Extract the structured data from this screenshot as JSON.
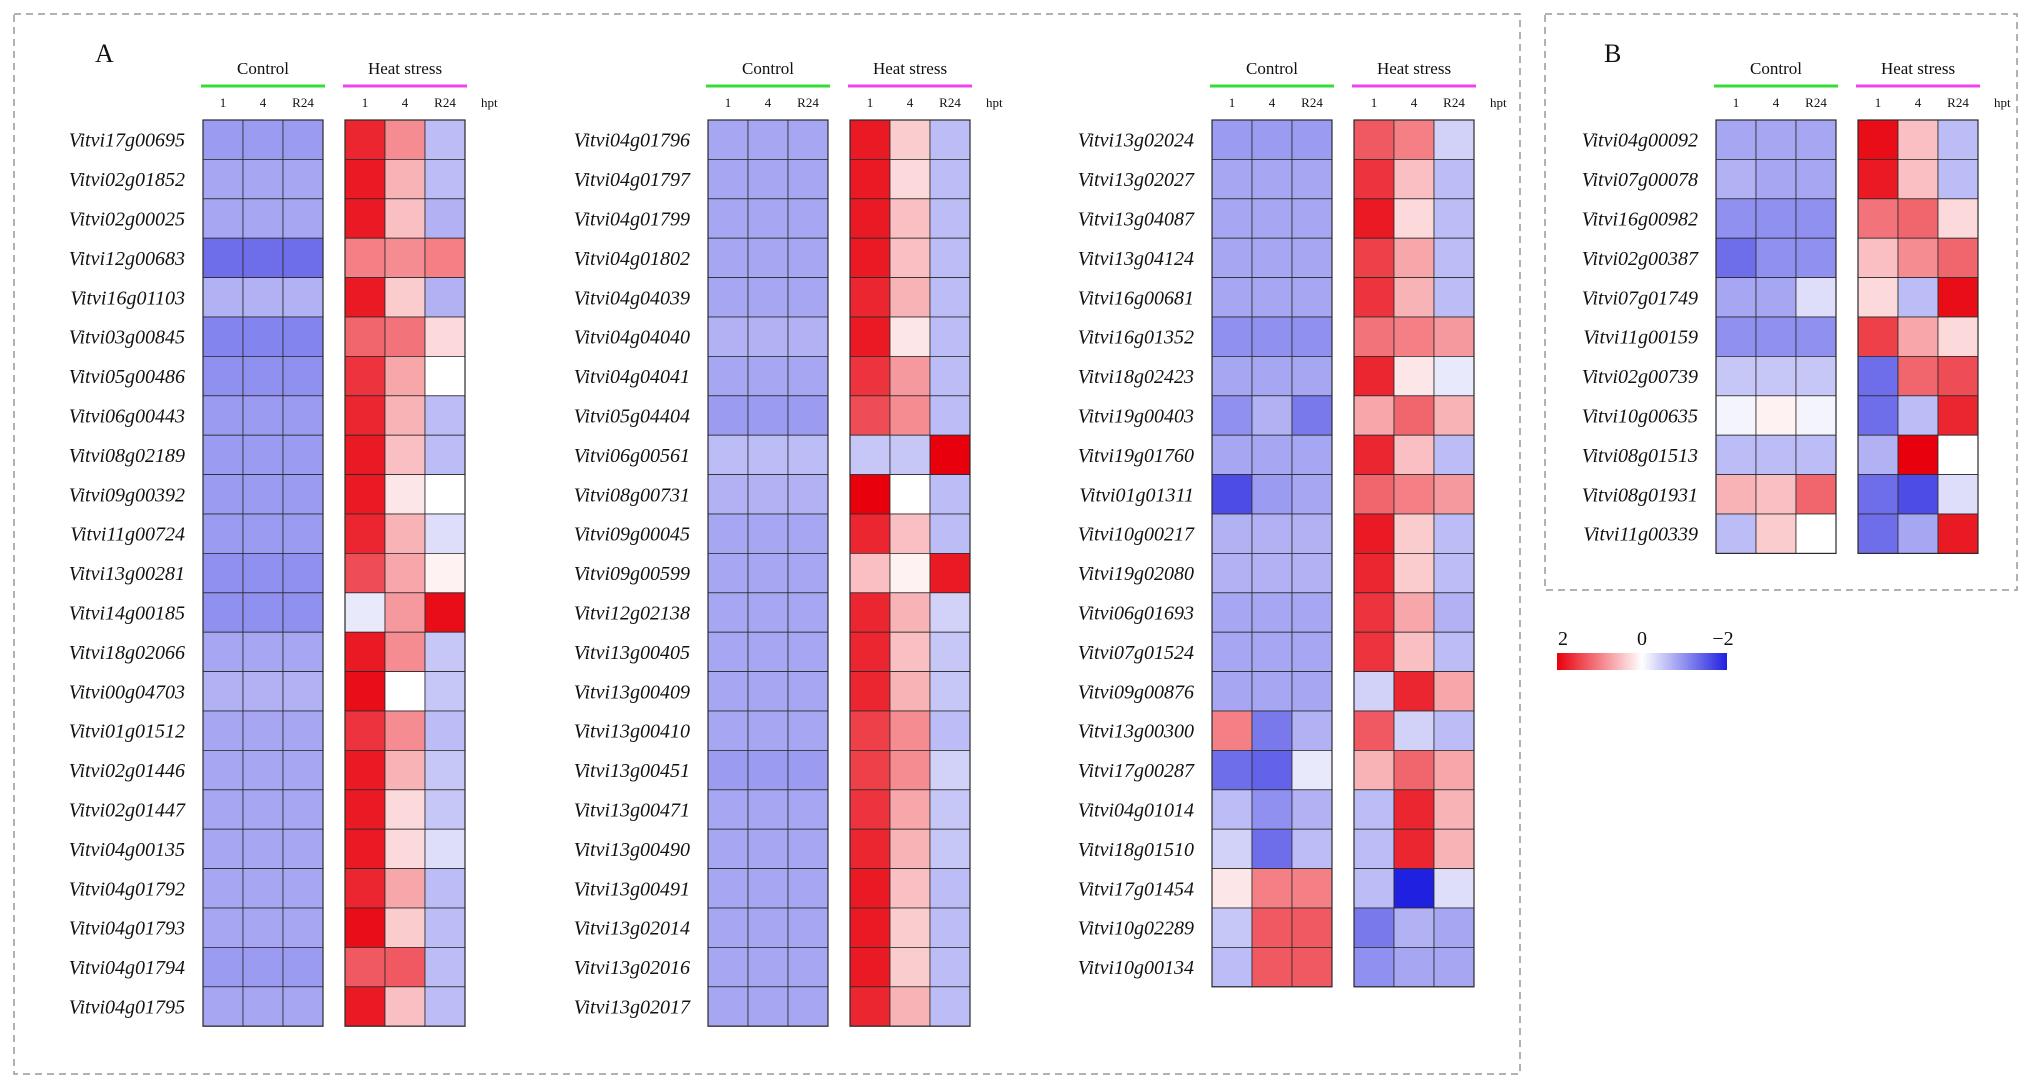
{
  "chart_data": {
    "type": "heatmap",
    "title": "",
    "group_labels": [
      "Control",
      "Heat stress"
    ],
    "column_labels": [
      "1",
      "4",
      "R24"
    ],
    "unit_label": "hpt",
    "legend": {
      "min": -2,
      "max": 2,
      "labels": [
        "2",
        "0",
        "−2"
      ],
      "low_color": "#2020e0",
      "mid_color": "#ffffff",
      "high_color": "#e8000c"
    },
    "colors": {
      "control_line": "#33dd33",
      "heat_line": "#ee44ee"
    },
    "panels": [
      {
        "label": "A",
        "blocks": [
          {
            "genes": [
              "Vitvi17g00695",
              "Vitvi02g01852",
              "Vitvi02g00025",
              "Vitvi12g00683",
              "Vitvi16g01103",
              "Vitvi03g00845",
              "Vitvi05g00486",
              "Vitvi06g00443",
              "Vitvi08g02189",
              "Vitvi09g00392",
              "Vitvi11g00724",
              "Vitvi13g00281",
              "Vitvi14g00185",
              "Vitvi18g02066",
              "Vitvi00g04703",
              "Vitvi01g01512",
              "Vitvi02g01446",
              "Vitvi02g01447",
              "Vitvi04g00135",
              "Vitvi04g01792",
              "Vitvi04g01793",
              "Vitvi04g01794",
              "Vitvi04g01795"
            ],
            "control": [
              [
                -0.9,
                -0.9,
                -0.9
              ],
              [
                -0.8,
                -0.8,
                -0.8
              ],
              [
                -0.8,
                -0.8,
                -0.8
              ],
              [
                -1.3,
                -1.3,
                -1.3
              ],
              [
                -0.7,
                -0.7,
                -0.7
              ],
              [
                -1.1,
                -1.1,
                -1.1
              ],
              [
                -1.0,
                -1.0,
                -1.0
              ],
              [
                -0.9,
                -0.9,
                -0.9
              ],
              [
                -0.9,
                -0.9,
                -0.9
              ],
              [
                -0.9,
                -0.9,
                -0.9
              ],
              [
                -0.9,
                -0.9,
                -0.9
              ],
              [
                -1.0,
                -1.0,
                -1.0
              ],
              [
                -1.0,
                -1.0,
                -1.0
              ],
              [
                -0.8,
                -0.8,
                -0.8
              ],
              [
                -0.7,
                -0.7,
                -0.7
              ],
              [
                -0.8,
                -0.8,
                -0.8
              ],
              [
                -0.8,
                -0.8,
                -0.8
              ],
              [
                -0.8,
                -0.8,
                -0.8
              ],
              [
                -0.8,
                -0.8,
                -0.8
              ],
              [
                -0.8,
                -0.8,
                -0.8
              ],
              [
                -0.8,
                -0.8,
                -0.8
              ],
              [
                -0.9,
                -0.9,
                -0.9
              ],
              [
                -0.8,
                -0.8,
                -0.8
              ]
            ],
            "heat": [
              [
                1.7,
                0.9,
                -0.6
              ],
              [
                1.8,
                0.6,
                -0.6
              ],
              [
                1.8,
                0.5,
                -0.7
              ],
              [
                1.0,
                0.9,
                1.0
              ],
              [
                1.8,
                0.4,
                -0.7
              ],
              [
                1.2,
                1.1,
                0.3
              ],
              [
                1.6,
                0.7,
                0.0
              ],
              [
                1.7,
                0.6,
                -0.6
              ],
              [
                1.8,
                0.5,
                -0.6
              ],
              [
                1.8,
                0.2,
                0.0
              ],
              [
                1.7,
                0.6,
                -0.3
              ],
              [
                1.4,
                0.7,
                0.1
              ],
              [
                -0.2,
                0.8,
                1.9
              ],
              [
                1.8,
                0.9,
                -0.5
              ],
              [
                1.9,
                0.0,
                -0.5
              ],
              [
                1.6,
                0.9,
                -0.6
              ],
              [
                1.8,
                0.6,
                -0.5
              ],
              [
                1.8,
                0.3,
                -0.5
              ],
              [
                1.8,
                0.3,
                -0.3
              ],
              [
                1.7,
                0.7,
                -0.6
              ],
              [
                1.9,
                0.4,
                -0.6
              ],
              [
                1.3,
                1.3,
                -0.6
              ],
              [
                1.8,
                0.5,
                -0.6
              ]
            ]
          },
          {
            "genes": [
              "Vitvi04g01796",
              "Vitvi04g01797",
              "Vitvi04g01799",
              "Vitvi04g01802",
              "Vitvi04g04039",
              "Vitvi04g04040",
              "Vitvi04g04041",
              "Vitvi05g04404",
              "Vitvi06g00561",
              "Vitvi08g00731",
              "Vitvi09g00045",
              "Vitvi09g00599",
              "Vitvi12g02138",
              "Vitvi13g00405",
              "Vitvi13g00409",
              "Vitvi13g00410",
              "Vitvi13g00451",
              "Vitvi13g00471",
              "Vitvi13g00490",
              "Vitvi13g00491",
              "Vitvi13g02014",
              "Vitvi13g02016",
              "Vitvi13g02017"
            ],
            "control": [
              [
                -0.8,
                -0.8,
                -0.8
              ],
              [
                -0.8,
                -0.8,
                -0.8
              ],
              [
                -0.8,
                -0.8,
                -0.8
              ],
              [
                -0.8,
                -0.8,
                -0.8
              ],
              [
                -0.8,
                -0.8,
                -0.8
              ],
              [
                -0.7,
                -0.7,
                -0.7
              ],
              [
                -0.8,
                -0.8,
                -0.8
              ],
              [
                -0.9,
                -0.9,
                -0.9
              ],
              [
                -0.6,
                -0.6,
                -0.6
              ],
              [
                -0.7,
                -0.7,
                -0.7
              ],
              [
                -0.8,
                -0.8,
                -0.8
              ],
              [
                -0.8,
                -0.8,
                -0.8
              ],
              [
                -0.8,
                -0.8,
                -0.8
              ],
              [
                -0.8,
                -0.8,
                -0.8
              ],
              [
                -0.8,
                -0.8,
                -0.8
              ],
              [
                -0.8,
                -0.8,
                -0.8
              ],
              [
                -0.9,
                -0.9,
                -0.9
              ],
              [
                -0.8,
                -0.8,
                -0.8
              ],
              [
                -0.8,
                -0.8,
                -0.8
              ],
              [
                -0.8,
                -0.8,
                -0.8
              ],
              [
                -0.8,
                -0.8,
                -0.8
              ],
              [
                -0.8,
                -0.8,
                -0.8
              ],
              [
                -0.8,
                -0.8,
                -0.8
              ]
            ],
            "heat": [
              [
                1.8,
                0.4,
                -0.6
              ],
              [
                1.8,
                0.3,
                -0.6
              ],
              [
                1.8,
                0.5,
                -0.6
              ],
              [
                1.8,
                0.5,
                -0.6
              ],
              [
                1.7,
                0.6,
                -0.6
              ],
              [
                1.8,
                0.2,
                -0.6
              ],
              [
                1.6,
                0.8,
                -0.6
              ],
              [
                1.4,
                0.9,
                -0.6
              ],
              [
                -0.5,
                -0.5,
                2.0
              ],
              [
                2.0,
                0.0,
                -0.6
              ],
              [
                1.7,
                0.5,
                -0.6
              ],
              [
                0.5,
                0.1,
                1.8
              ],
              [
                1.7,
                0.6,
                -0.4
              ],
              [
                1.7,
                0.5,
                -0.5
              ],
              [
                1.7,
                0.6,
                -0.5
              ],
              [
                1.5,
                0.9,
                -0.6
              ],
              [
                1.5,
                0.9,
                -0.4
              ],
              [
                1.6,
                0.7,
                -0.5
              ],
              [
                1.7,
                0.6,
                -0.5
              ],
              [
                1.8,
                0.5,
                -0.6
              ],
              [
                1.8,
                0.4,
                -0.6
              ],
              [
                1.8,
                0.4,
                -0.6
              ],
              [
                1.7,
                0.6,
                -0.6
              ]
            ]
          },
          {
            "genes": [
              "Vitvi13g02024",
              "Vitvi13g02027",
              "Vitvi13g04087",
              "Vitvi13g04124",
              "Vitvi16g00681",
              "Vitvi16g01352",
              "Vitvi18g02423",
              "Vitvi19g00403",
              "Vitvi19g01760",
              "Vitvi01g01311",
              "Vitvi10g00217",
              "Vitvi19g02080",
              "Vitvi06g01693",
              "Vitvi07g01524",
              "Vitvi09g00876",
              "Vitvi13g00300",
              "Vitvi17g00287",
              "Vitvi04g01014",
              "Vitvi18g01510",
              "Vitvi17g01454",
              "Vitvi10g02289",
              "Vitvi10g00134"
            ],
            "control": [
              [
                -0.9,
                -0.9,
                -0.9
              ],
              [
                -0.8,
                -0.8,
                -0.8
              ],
              [
                -0.8,
                -0.8,
                -0.8
              ],
              [
                -0.8,
                -0.8,
                -0.8
              ],
              [
                -0.8,
                -0.8,
                -0.8
              ],
              [
                -1.0,
                -1.0,
                -1.0
              ],
              [
                -0.8,
                -0.8,
                -0.8
              ],
              [
                -1.0,
                -0.7,
                -1.2
              ],
              [
                -0.8,
                -0.8,
                -0.8
              ],
              [
                -1.6,
                -0.9,
                -0.8
              ],
              [
                -0.7,
                -0.7,
                -0.7
              ],
              [
                -0.7,
                -0.7,
                -0.7
              ],
              [
                -0.8,
                -0.8,
                -0.8
              ],
              [
                -0.8,
                -0.8,
                -0.8
              ],
              [
                -0.8,
                -0.8,
                -0.8
              ],
              [
                1.0,
                -1.2,
                -0.7
              ],
              [
                -1.3,
                -1.4,
                -0.2
              ],
              [
                -0.6,
                -1.0,
                -0.7
              ],
              [
                -0.4,
                -1.3,
                -0.6
              ],
              [
                0.2,
                1.0,
                1.0
              ],
              [
                -0.5,
                1.3,
                1.3
              ],
              [
                -0.6,
                1.3,
                1.3
              ]
            ],
            "heat": [
              [
                1.3,
                1.0,
                -0.4
              ],
              [
                1.6,
                0.5,
                -0.6
              ],
              [
                1.8,
                0.3,
                -0.6
              ],
              [
                1.5,
                0.7,
                -0.6
              ],
              [
                1.6,
                0.6,
                -0.6
              ],
              [
                1.1,
                1.0,
                0.8
              ],
              [
                1.7,
                0.2,
                -0.2
              ],
              [
                0.7,
                1.2,
                0.6
              ],
              [
                1.7,
                0.5,
                -0.6
              ],
              [
                1.2,
                1.0,
                0.8
              ],
              [
                1.8,
                0.4,
                -0.6
              ],
              [
                1.7,
                0.4,
                -0.6
              ],
              [
                1.6,
                0.7,
                -0.7
              ],
              [
                1.6,
                0.5,
                -0.6
              ],
              [
                -0.4,
                1.7,
                0.7
              ],
              [
                1.3,
                -0.4,
                -0.6
              ],
              [
                0.6,
                1.2,
                0.7
              ],
              [
                -0.6,
                1.7,
                0.6
              ],
              [
                -0.6,
                1.7,
                0.6
              ],
              [
                -0.6,
                -2.0,
                -0.3
              ],
              [
                -1.2,
                -0.7,
                -0.8
              ],
              [
                -1.0,
                -0.8,
                -0.8
              ]
            ]
          }
        ]
      },
      {
        "label": "B",
        "blocks": [
          {
            "genes": [
              "Vitvi04g00092",
              "Vitvi07g00078",
              "Vitvi16g00982",
              "Vitvi02g00387",
              "Vitvi07g01749",
              "Vitvi11g00159",
              "Vitvi02g00739",
              "Vitvi10g00635",
              "Vitvi08g01513",
              "Vitvi08g01931",
              "Vitvi11g00339"
            ],
            "control": [
              [
                -0.8,
                -0.8,
                -0.8
              ],
              [
                -0.7,
                -0.8,
                -0.8
              ],
              [
                -1.0,
                -1.0,
                -1.0
              ],
              [
                -1.3,
                -1.0,
                -1.0
              ],
              [
                -0.8,
                -0.8,
                -0.3
              ],
              [
                -1.0,
                -1.0,
                -1.0
              ],
              [
                -0.5,
                -0.5,
                -0.5
              ],
              [
                -0.1,
                0.1,
                -0.1
              ],
              [
                -0.6,
                -0.6,
                -0.6
              ],
              [
                0.6,
                0.5,
                1.2
              ],
              [
                -0.6,
                0.4,
                0.0
              ]
            ],
            "heat": [
              [
                1.9,
                0.5,
                -0.6
              ],
              [
                1.8,
                0.5,
                -0.6
              ],
              [
                1.1,
                1.2,
                0.3
              ],
              [
                0.5,
                0.9,
                1.2
              ],
              [
                0.3,
                -0.6,
                1.9
              ],
              [
                1.5,
                0.7,
                0.3
              ],
              [
                -1.3,
                1.2,
                1.4
              ],
              [
                -1.3,
                -0.6,
                1.7
              ],
              [
                -0.7,
                2.0,
                0.0
              ],
              [
                -1.3,
                -1.6,
                -0.3
              ],
              [
                -1.3,
                -0.8,
                1.8
              ]
            ]
          }
        ]
      }
    ]
  }
}
